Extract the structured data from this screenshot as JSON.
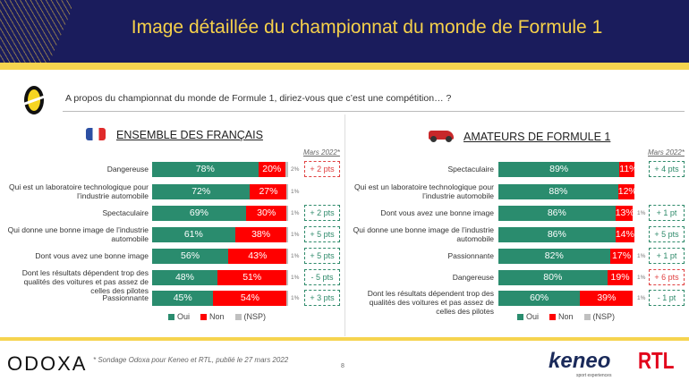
{
  "header": {
    "title": "Image détaillée du championnat du monde de Formule 1"
  },
  "question": "A propos du championnat du monde de Formule 1, diriez-vous que c’est une compétition… ?",
  "colors": {
    "oui": "#2a8c6e",
    "non": "#ff0000",
    "nsp": "#c0c0c0",
    "positive": "#2e8a6a",
    "negative": "#e04040"
  },
  "chart_data": [
    {
      "type": "bar",
      "stacked": true,
      "orientation": "horizontal",
      "title": "ENSEMBLE DES FRANÇAIS",
      "comparison_label": "Mars 2022*",
      "categories": [
        "Dangereuse",
        "Qui est un laboratoire technologique pour l’industrie automobile",
        "Spectaculaire",
        "Qui donne une bonne image de l’industrie automobile",
        "Dont vous avez une bonne image",
        "Dont les résultats dépendent trop des qualités des voitures et pas assez de celles des pilotes",
        "Passionnante"
      ],
      "series": [
        {
          "name": "Oui",
          "values": [
            78,
            72,
            69,
            61,
            56,
            48,
            45
          ]
        },
        {
          "name": "Non",
          "values": [
            20,
            27,
            30,
            38,
            43,
            51,
            54
          ]
        },
        {
          "name": "(NSP)",
          "values": [
            2,
            1,
            1,
            1,
            1,
            1,
            1
          ]
        }
      ],
      "nsp_labels": [
        "2%",
        "1%",
        "1%",
        "1%",
        "1%",
        "1%",
        "1%"
      ],
      "changes": [
        "+ 2 pts",
        "",
        "+ 2 pts",
        "+ 5 pts",
        "+ 5 pts",
        "- 5 pts",
        "+ 3 pts"
      ],
      "change_tone": [
        "negative",
        "",
        "positive",
        "positive",
        "positive",
        "positive",
        "positive"
      ],
      "legend": "bottom"
    },
    {
      "type": "bar",
      "stacked": true,
      "orientation": "horizontal",
      "title": "AMATEURS DE FORMULE 1",
      "comparison_label": "Mars 2022*",
      "categories": [
        "Spectaculaire",
        "Qui est un laboratoire technologique pour l’industrie automobile",
        "Dont vous avez une bonne image",
        "Qui donne une bonne image de l’industrie automobile",
        "Passionnante",
        "Dangereuse",
        "Dont les résultats dépendent trop des qualités des voitures et pas assez de celles des pilotes"
      ],
      "series": [
        {
          "name": "Oui",
          "values": [
            89,
            88,
            86,
            86,
            82,
            80,
            60
          ]
        },
        {
          "name": "Non",
          "values": [
            11,
            12,
            13,
            14,
            17,
            19,
            39
          ]
        },
        {
          "name": "(NSP)",
          "values": [
            0,
            0,
            1,
            0,
            1,
            1,
            1
          ]
        }
      ],
      "nsp_labels": [
        "",
        "",
        "1%",
        "",
        "1%",
        "1%",
        "1%"
      ],
      "changes": [
        "+ 4 pts",
        "",
        "+ 1 pt",
        "+ 5 pts",
        "+ 1 pt",
        "+ 6 pts",
        "- 1 pt"
      ],
      "change_tone": [
        "positive",
        "",
        "positive",
        "positive",
        "positive",
        "negative",
        "positive"
      ],
      "legend": "bottom"
    }
  ],
  "footer": {
    "logo": "ODOXA",
    "note": "* Sondage Odoxa pour Keneo et RTL, publié le 27 mars 2022",
    "page": "8",
    "keneo": "keneo",
    "keneo_sub": "sport experiences",
    "rtl": "RTL"
  }
}
